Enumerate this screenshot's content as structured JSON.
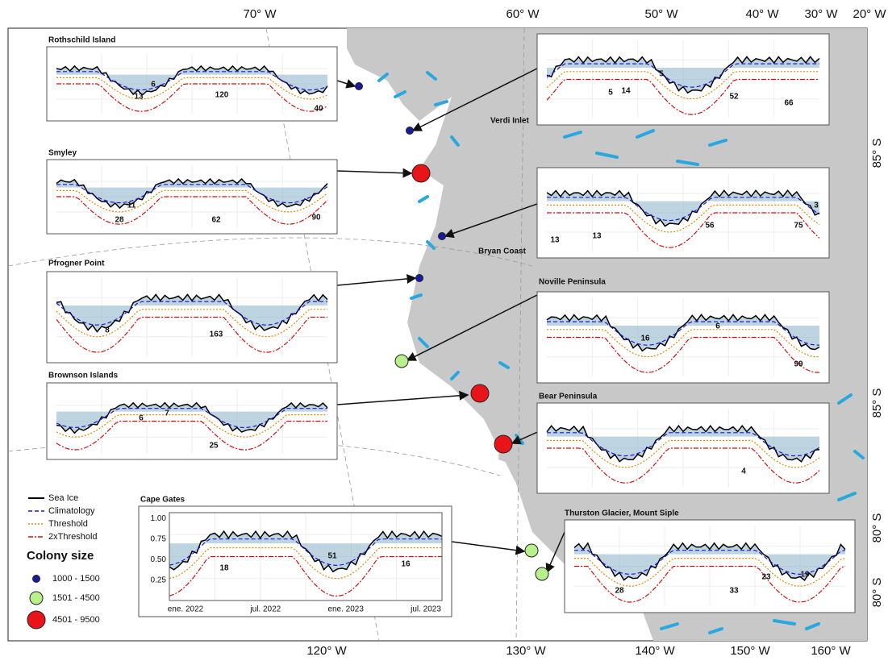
{
  "axes": {
    "top": [
      "70° W",
      "60° W",
      "50° W",
      "40° W",
      "30° W",
      "20° W"
    ],
    "bottom": [
      "120° W",
      "130° W",
      "140° W",
      "150° W",
      "160° W"
    ],
    "right": [
      "85° S",
      "85° S",
      "80° S",
      "80° S"
    ]
  },
  "place_labels": [
    "Verdi Inlet",
    "Bryan Coast"
  ],
  "insets": [
    {
      "title": "Rothschild Island",
      "annotations": [
        13,
        6,
        120,
        40
      ]
    },
    {
      "title": "Smyley",
      "annotations": [
        28,
        11,
        62,
        90
      ]
    },
    {
      "title": "Pfrogner Point",
      "annotations": [
        8,
        163
      ]
    },
    {
      "title": "Brownson Islands",
      "annotations": [
        6,
        7,
        25
      ]
    },
    {
      "title": "Cape Gates",
      "annotations": [
        18,
        51,
        16
      ],
      "yticks": [
        "0.25",
        "0.50",
        "0.75",
        "1.00"
      ],
      "xticks": [
        "ene. 2022",
        "jul. 2022",
        "ene. 2023",
        "jul. 2023"
      ]
    },
    {
      "annotations": [
        5,
        14,
        5,
        52,
        66
      ]
    },
    {
      "annotations": [
        13,
        13,
        56,
        75,
        3
      ]
    },
    {
      "title": "Noville Peninsula",
      "annotations": [
        16,
        6,
        99
      ]
    },
    {
      "title": "Bear Peninsula",
      "annotations": [
        4
      ]
    },
    {
      "title": "Thurston Glacier, Mount Siple",
      "annotations": [
        28,
        33,
        23,
        19
      ]
    }
  ],
  "legend": {
    "lines": [
      "Sea Ice",
      "Climatology",
      "Threshold",
      "2xThreshold"
    ],
    "colony_title": "Colony size",
    "colony": [
      "1000 - 1500",
      "1501 - 4500",
      "4501 - 9500"
    ]
  }
}
